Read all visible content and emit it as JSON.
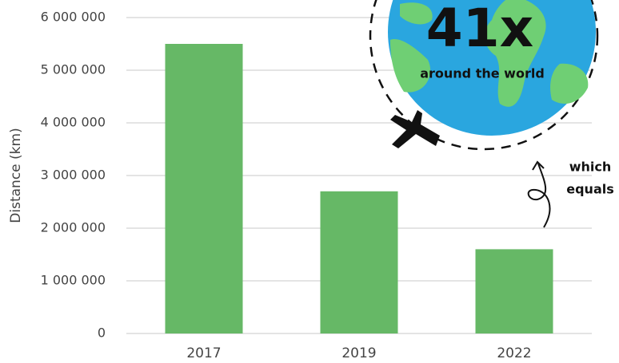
{
  "chart_data": {
    "type": "bar",
    "y_label": "Distance (km)",
    "categories": [
      "2017",
      "2019",
      "2022"
    ],
    "values": [
      5500000,
      2700000,
      1600000
    ],
    "color": "#66b866",
    "ylim": [
      0,
      6000000
    ],
    "yticks": [
      0,
      {
        "value": 1000000,
        "label": "1 000 000"
      },
      {
        "value": 2000000,
        "label": "2 000 000"
      },
      {
        "value": 3000000,
        "label": "3 000 000"
      },
      {
        "value": 4000000,
        "label": "4 000 000"
      },
      {
        "value": 5000000,
        "label": "5 000 000"
      },
      {
        "value": 6000000,
        "label": "6 000 000"
      }
    ],
    "grid": true,
    "annotations": [
      "41x",
      "around the world",
      "which",
      "equals"
    ]
  }
}
